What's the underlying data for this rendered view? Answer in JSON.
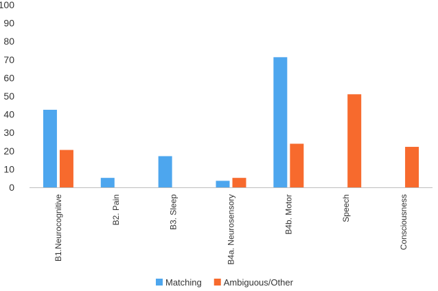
{
  "chart_data": {
    "type": "bar",
    "title": "",
    "xlabel": "",
    "ylabel": "",
    "categories": [
      "B1.Neurocognitive",
      "B2. Pain",
      "B3. Sleep",
      "B4a. Neurosensory",
      "B4b. Motor",
      "Speech",
      "Consciousness"
    ],
    "series": [
      {
        "name": "Matching",
        "color": "#4da6ee",
        "values": [
          42.5,
          5.2,
          17.1,
          3.6,
          71.3,
          0,
          0
        ]
      },
      {
        "name": "Ambiguous/Other",
        "color": "#f76a2d",
        "values": [
          20.5,
          0,
          0,
          5.2,
          23.9,
          51.0,
          22.2
        ]
      }
    ],
    "ylim": [
      0,
      100
    ],
    "yticks": [
      0,
      10,
      20,
      30,
      40,
      50,
      60,
      70,
      80,
      90,
      100
    ],
    "grid": false,
    "legend_position": "bottom"
  }
}
